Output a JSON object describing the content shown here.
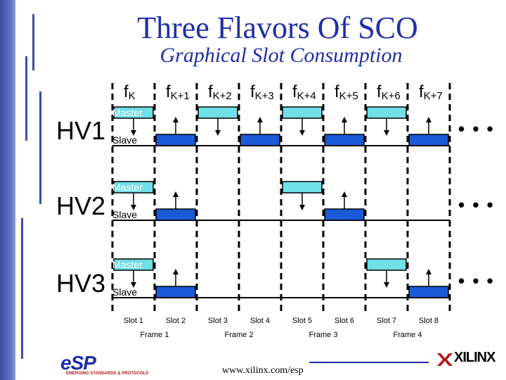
{
  "title": "Three Flavors Of SCO",
  "subtitle": "Graphical Slot Consumption",
  "freq_labels": [
    {
      "base": "f",
      "sub": "K"
    },
    {
      "base": "f",
      "sub": "K+1"
    },
    {
      "base": "f",
      "sub": "K+2"
    },
    {
      "base": "f",
      "sub": "K+3"
    },
    {
      "base": "f",
      "sub": "K+4"
    },
    {
      "base": "f",
      "sub": "K+5"
    },
    {
      "base": "f",
      "sub": "K+6"
    },
    {
      "base": "f",
      "sub": "K+7"
    }
  ],
  "rows": [
    {
      "label": "HV1",
      "master_label": "Master",
      "slave_label": "Slave",
      "active_pairs": [
        0,
        1,
        2,
        3
      ]
    },
    {
      "label": "HV2",
      "master_label": "Master",
      "slave_label": "Slave",
      "active_pairs": [
        0,
        2
      ]
    },
    {
      "label": "HV3",
      "master_label": "Master",
      "slave_label": "Slave",
      "active_pairs": [
        0,
        3
      ]
    }
  ],
  "continuation": "• • •",
  "slots": [
    "Slot 1",
    "Slot 2",
    "Slot 3",
    "Slot 4",
    "Slot 5",
    "Slot 6",
    "Slot 7",
    "Slot 8"
  ],
  "frames": [
    "Frame 1",
    "Frame 2",
    "Frame 3",
    "Frame 4"
  ],
  "colors": {
    "master_box": "#6ee0e6",
    "slave_box": "#1a5ad6",
    "text_blue": "#1f2fa8"
  },
  "footer_url": "www.xilinx.com/esp",
  "logos": {
    "esp": "eSP",
    "esp_subtitle": "EMERGING STANDARDS & PROTOCOLS",
    "xilinx": "XILINX"
  }
}
